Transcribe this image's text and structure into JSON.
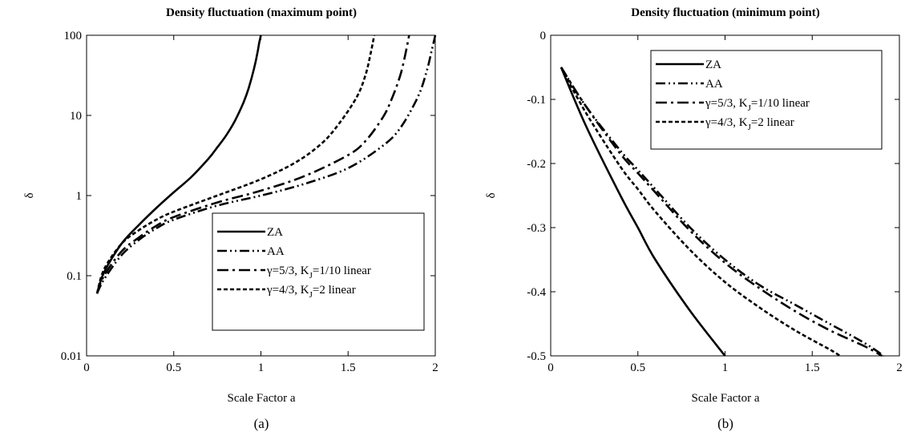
{
  "charts": [
    {
      "panel_label": "(a)",
      "chart_data": {
        "type": "line",
        "title": "Density fluctuation (maximum point)",
        "xlabel": "Scale Factor  a",
        "ylabel": "δ",
        "xlim": [
          0,
          2
        ],
        "ylim": [
          0.01,
          100
        ],
        "yscale": "log",
        "grid": false,
        "legend_position": "bottom-right",
        "x_ticks": [
          "0",
          "0.5",
          "1",
          "1.5",
          "2"
        ],
        "y_ticks": [
          "0.01",
          "0.1",
          "1",
          "10",
          "100"
        ],
        "series": [
          {
            "name": "ZA",
            "x": [
              0.06,
              0.1,
              0.2,
              0.3,
              0.4,
              0.5,
              0.6,
              0.7,
              0.75,
              0.8,
              0.85,
              0.9,
              0.93,
              0.96,
              0.98,
              0.99,
              1.0
            ],
            "y": [
              0.06,
              0.11,
              0.25,
              0.43,
              0.7,
              1.1,
              1.7,
              2.9,
              4.0,
              5.6,
              8.5,
              14.5,
              22,
              38,
              60,
              80,
              100
            ]
          },
          {
            "name": "AA",
            "x": [
              0.06,
              0.1,
              0.2,
              0.3,
              0.4,
              0.5,
              0.75,
              1.0,
              1.25,
              1.5,
              1.7,
              1.8,
              1.9,
              1.95,
              1.98,
              2.0
            ],
            "y": [
              0.06,
              0.09,
              0.18,
              0.28,
              0.39,
              0.5,
              0.75,
              1.0,
              1.4,
              2.2,
              4.2,
              7.0,
              17,
              35,
              65,
              100
            ]
          },
          {
            "name": "γ=5/3, K_J=1/10 linear",
            "x": [
              0.06,
              0.1,
              0.2,
              0.3,
              0.4,
              0.5,
              0.75,
              1.0,
              1.25,
              1.5,
              1.6,
              1.7,
              1.75,
              1.8,
              1.83,
              1.85
            ],
            "y": [
              0.06,
              0.1,
              0.2,
              0.3,
              0.42,
              0.54,
              0.82,
              1.15,
              1.75,
              3.2,
              4.8,
              9.5,
              16,
              32,
              60,
              100
            ]
          },
          {
            "name": "γ=4/3, K_J=2 linear",
            "x": [
              0.06,
              0.1,
              0.2,
              0.3,
              0.4,
              0.5,
              0.75,
              1.0,
              1.2,
              1.35,
              1.45,
              1.55,
              1.6,
              1.63,
              1.65
            ],
            "y": [
              0.06,
              0.12,
              0.25,
              0.37,
              0.5,
              0.63,
              1.0,
              1.6,
              2.6,
              4.5,
              8.0,
              17,
              32,
              60,
              100
            ]
          }
        ]
      }
    },
    {
      "panel_label": "(b)",
      "chart_data": {
        "type": "line",
        "title": "Density fluctuation (minimum point)",
        "xlabel": "Scale Factor  a",
        "ylabel": "δ",
        "xlim": [
          0,
          2
        ],
        "ylim": [
          -0.5,
          0
        ],
        "yscale": "linear",
        "grid": false,
        "legend_position": "top-right",
        "x_ticks": [
          "0",
          "0.5",
          "1",
          "1.5",
          "2"
        ],
        "y_ticks": [
          "0",
          "-0.1",
          "-0.2",
          "-0.3",
          "-0.4",
          "-0.5"
        ],
        "series": [
          {
            "name": "ZA",
            "x": [
              0.06,
              0.2,
              0.4,
              0.5,
              0.6,
              0.8,
              1.0
            ],
            "y": [
              -0.05,
              -0.14,
              -0.25,
              -0.3,
              -0.35,
              -0.43,
              -0.5
            ]
          },
          {
            "name": "AA",
            "x": [
              0.06,
              0.2,
              0.4,
              0.5,
              0.6,
              0.8,
              1.0,
              1.2,
              1.4,
              1.6,
              1.8,
              1.91
            ],
            "y": [
              -0.05,
              -0.11,
              -0.18,
              -0.21,
              -0.24,
              -0.3,
              -0.35,
              -0.39,
              -0.42,
              -0.45,
              -0.48,
              -0.5
            ]
          },
          {
            "name": "γ=5/3, K_J=1/10 linear",
            "x": [
              0.06,
              0.2,
              0.4,
              0.5,
              0.6,
              0.8,
              1.0,
              1.2,
              1.4,
              1.6,
              1.8,
              1.9
            ],
            "y": [
              -0.05,
              -0.11,
              -0.185,
              -0.215,
              -0.245,
              -0.305,
              -0.355,
              -0.395,
              -0.43,
              -0.46,
              -0.485,
              -0.5
            ]
          },
          {
            "name": "γ=4/3, K_J=2 linear",
            "x": [
              0.06,
              0.2,
              0.4,
              0.5,
              0.6,
              0.8,
              1.0,
              1.2,
              1.4,
              1.6,
              1.66
            ],
            "y": [
              -0.05,
              -0.12,
              -0.205,
              -0.24,
              -0.275,
              -0.335,
              -0.385,
              -0.425,
              -0.46,
              -0.49,
              -0.5
            ]
          }
        ]
      }
    }
  ],
  "legend_labels": [
    {
      "main": "ZA",
      "sub": "",
      "tail": ""
    },
    {
      "main": "AA",
      "sub": "",
      "tail": ""
    },
    {
      "main": "γ=5/3, K",
      "sub": "J",
      "tail": "=1/10 linear"
    },
    {
      "main": "γ=4/3, K",
      "sub": "J",
      "tail": "=2 linear"
    }
  ],
  "line_styles": [
    {
      "dash": "",
      "width": 2.6
    },
    {
      "dash": "12 4 2 4 2 4",
      "width": 2.6
    },
    {
      "dash": "14 5 3 5",
      "width": 2.6
    },
    {
      "dash": "5 3",
      "width": 2.6
    }
  ]
}
